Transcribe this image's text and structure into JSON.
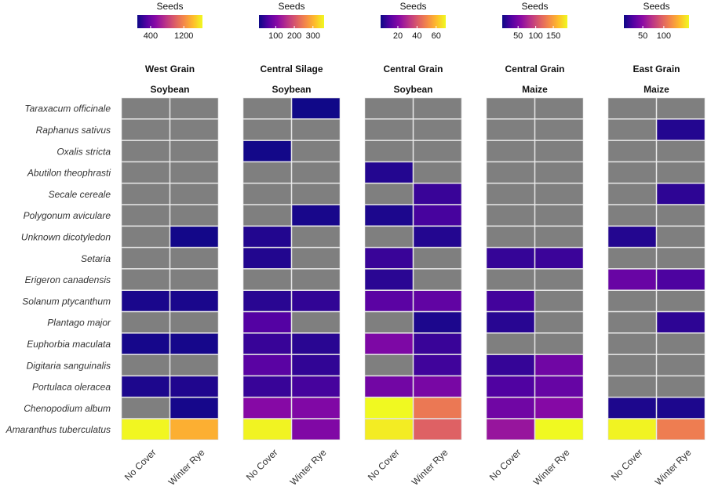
{
  "chart_data": {
    "type": "heatmap",
    "legend_title": "Seeds",
    "colormap": "plasma",
    "na_color": "#7f7f7f",
    "species": [
      "Taraxacum officinale",
      "Raphanus sativus",
      "Oxalis stricta",
      "Abutilon theophrasti",
      "Secale cereale",
      "Polygonum aviculare",
      "Unknown dicotyledon",
      "Setaria",
      "Erigeron canadensis",
      "Solanum ptycanthum",
      "Plantago major",
      "Euphorbia maculata",
      "Digitaria sanguinalis",
      "Portulaca oleracea",
      "Chenopodium album",
      "Amaranthus tuberculatus"
    ],
    "treatments": [
      "No Cover",
      "Winter Rye"
    ],
    "panels": [
      {
        "site": "West Grain",
        "crop": "Soybean",
        "legend_range": [
          80,
          1650
        ],
        "legend_ticks": [
          400,
          1200
        ],
        "values": [
          [
            null,
            null
          ],
          [
            null,
            null
          ],
          [
            null,
            null
          ],
          [
            null,
            null
          ],
          [
            null,
            null
          ],
          [
            null,
            null
          ],
          [
            null,
            100
          ],
          [
            null,
            null
          ],
          [
            null,
            null
          ],
          [
            120,
            120
          ],
          [
            null,
            null
          ],
          [
            110,
            110
          ],
          [
            null,
            null
          ],
          [
            130,
            140
          ],
          [
            null,
            110
          ],
          [
            1640,
            1370
          ]
        ]
      },
      {
        "site": "Central Silage",
        "crop": "Soybean",
        "legend_range": [
          10,
          360
        ],
        "legend_ticks": [
          100,
          200,
          300
        ],
        "values": [
          [
            null,
            12
          ],
          [
            null,
            null
          ],
          [
            14,
            null
          ],
          [
            null,
            null
          ],
          [
            null,
            null
          ],
          [
            null,
            18
          ],
          [
            25,
            null
          ],
          [
            25,
            null
          ],
          [
            null,
            null
          ],
          [
            30,
            35
          ],
          [
            60,
            null
          ],
          [
            40,
            30
          ],
          [
            65,
            35
          ],
          [
            40,
            50
          ],
          [
            105,
            100
          ],
          [
            355,
            100
          ]
        ]
      },
      {
        "site": "Central Grain",
        "crop": "Soybean",
        "legend_range": [
          2,
          70
        ],
        "legend_ticks": [
          20,
          40,
          60
        ],
        "values": [
          [
            null,
            null
          ],
          [
            null,
            null
          ],
          [
            null,
            null
          ],
          [
            5,
            null
          ],
          [
            null,
            8
          ],
          [
            4,
            10
          ],
          [
            null,
            5
          ],
          [
            8,
            null
          ],
          [
            6,
            null
          ],
          [
            13,
            14
          ],
          [
            null,
            4
          ],
          [
            19,
            8
          ],
          [
            null,
            9
          ],
          [
            17,
            18
          ],
          [
            70,
            47
          ],
          [
            68,
            42
          ]
        ]
      },
      {
        "site": "Central Grain",
        "crop": "Maize",
        "legend_range": [
          5,
          190
        ],
        "legend_ticks": [
          50,
          100,
          150
        ],
        "values": [
          [
            null,
            null
          ],
          [
            null,
            null
          ],
          [
            null,
            null
          ],
          [
            null,
            null
          ],
          [
            null,
            null
          ],
          [
            null,
            null
          ],
          [
            null,
            null
          ],
          [
            20,
            22
          ],
          [
            null,
            null
          ],
          [
            25,
            null
          ],
          [
            15,
            null
          ],
          [
            null,
            null
          ],
          [
            20,
            45
          ],
          [
            30,
            40
          ],
          [
            45,
            55
          ],
          [
            65,
            190
          ]
        ]
      },
      {
        "site": "East Grain",
        "crop": "Maize",
        "legend_range": [
          5,
          160
        ],
        "legend_ticks": [
          50,
          100
        ],
        "values": [
          [
            null,
            null
          ],
          [
            null,
            12
          ],
          [
            null,
            null
          ],
          [
            null,
            null
          ],
          [
            null,
            15
          ],
          [
            null,
            null
          ],
          [
            12,
            null
          ],
          [
            null,
            null
          ],
          [
            35,
            25
          ],
          [
            null,
            null
          ],
          [
            null,
            15
          ],
          [
            null,
            null
          ],
          [
            null,
            null
          ],
          [
            null,
            null
          ],
          [
            10,
            10
          ],
          [
            158,
            110
          ]
        ]
      }
    ]
  }
}
